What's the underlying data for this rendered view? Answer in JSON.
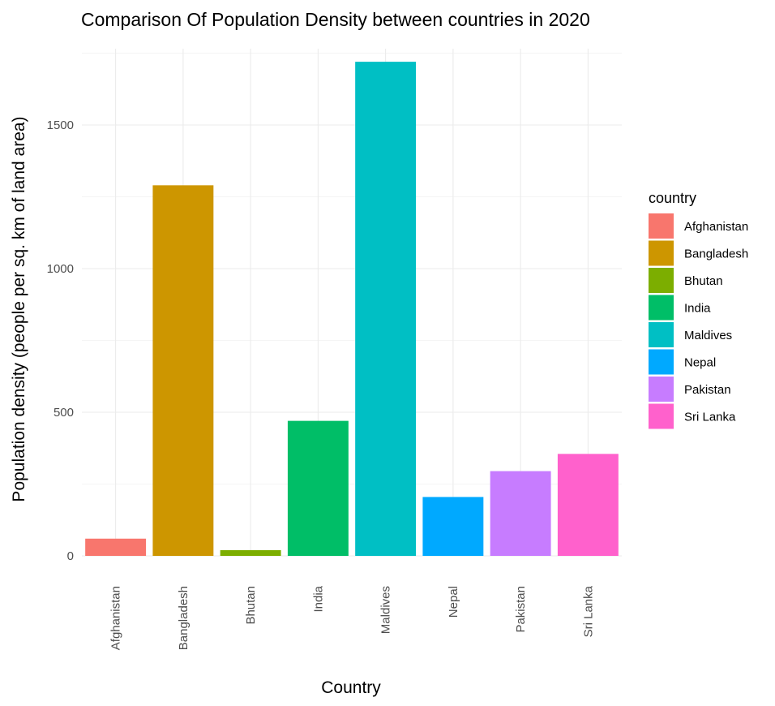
{
  "chart_data": {
    "type": "bar",
    "title": "Comparison Of Population Density between countries in 2020",
    "xlabel": "Country",
    "ylabel": "Population density (people per sq. km of land area)",
    "categories": [
      "Afghanistan",
      "Bangladesh",
      "Bhutan",
      "India",
      "Maldives",
      "Nepal",
      "Pakistan",
      "Sri Lanka"
    ],
    "values": [
      60,
      1290,
      20,
      470,
      1720,
      205,
      295,
      355
    ],
    "colors": [
      "#F8766D",
      "#CD9600",
      "#7CAE00",
      "#00BE67",
      "#00BFC4",
      "#00A9FF",
      "#C77CFF",
      "#FF61CC"
    ],
    "ylim": [
      0,
      1800
    ],
    "yticks": [
      0,
      500,
      1000,
      1500
    ],
    "grid": true,
    "legend": {
      "title": "country",
      "position": "right",
      "entries": [
        "Afghanistan",
        "Bangladesh",
        "Bhutan",
        "India",
        "Maldives",
        "Nepal",
        "Pakistan",
        "Sri Lanka"
      ]
    }
  }
}
